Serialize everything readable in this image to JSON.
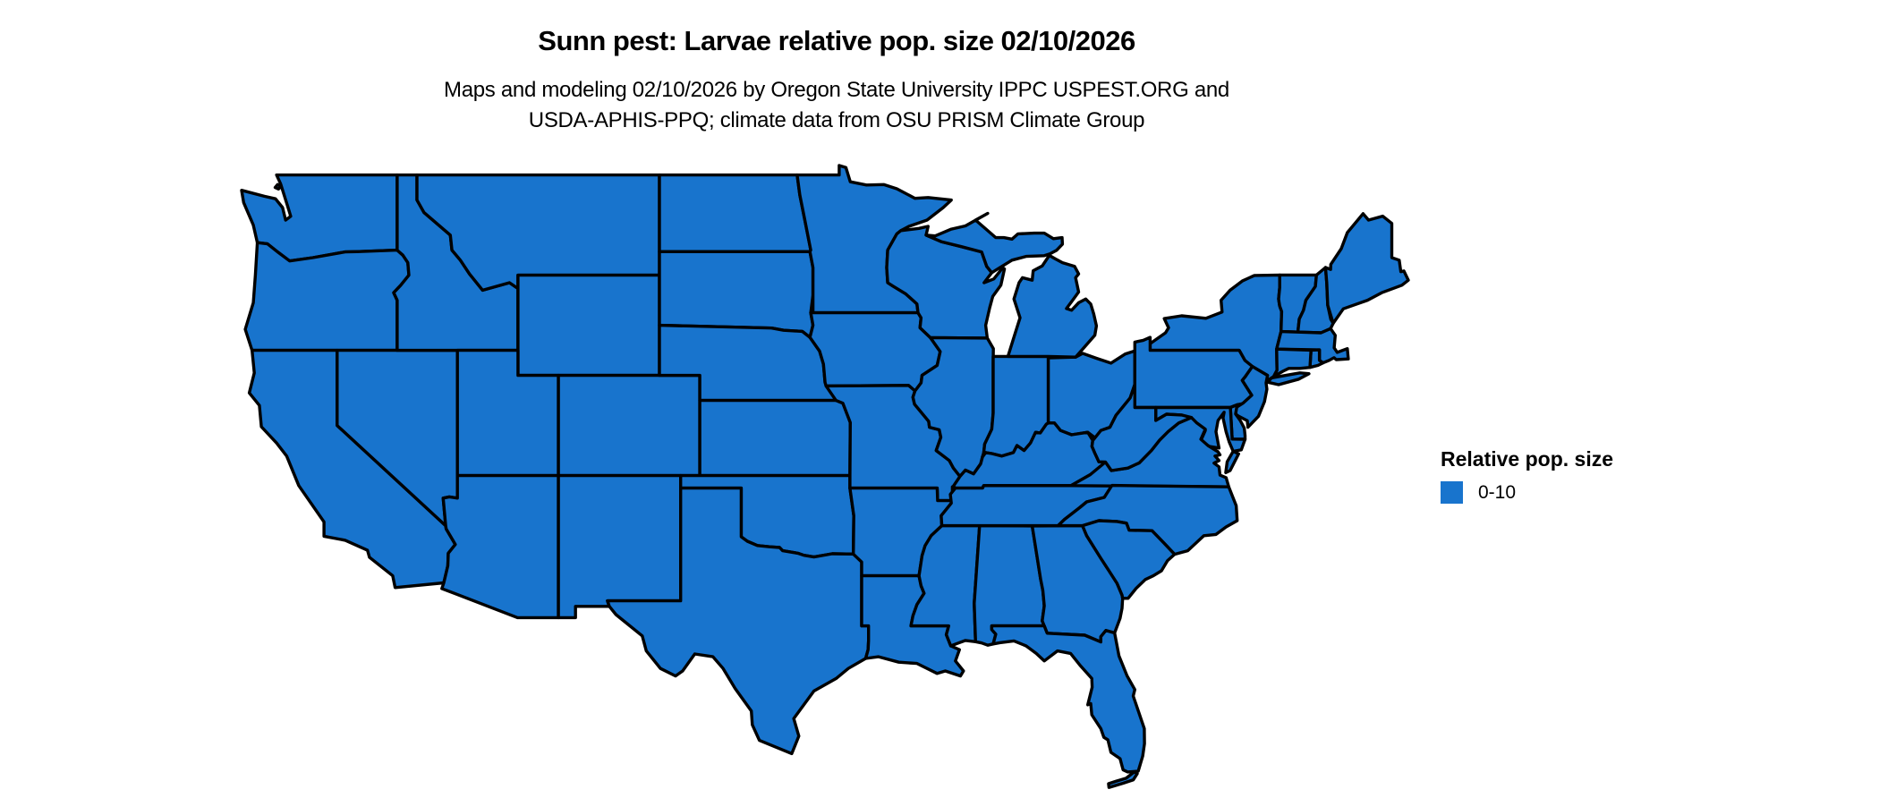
{
  "figure": {
    "title": "Sunn pest: Larvae relative pop. size 02/10/2026",
    "subtitle_line1": "Maps and modeling 02/10/2026 by Oregon State University IPPC USPEST.ORG and",
    "subtitle_line2": "USDA-APHIS-PPQ; climate data from OSU PRISM Climate Group"
  },
  "legend": {
    "title": "Relative pop. size",
    "items": [
      {
        "label": "0-10",
        "color": "#1874CD"
      }
    ]
  },
  "map": {
    "type": "choropleth",
    "region": "Contiguous United States",
    "fill_color": "#1874CD",
    "border_color": "#000000",
    "background_color": "#ffffff",
    "uniform_value_class": "0-10",
    "states_shown": [
      "WA",
      "OR",
      "CA",
      "NV",
      "ID",
      "MT",
      "WY",
      "UT",
      "CO",
      "AZ",
      "NM",
      "ND",
      "SD",
      "NE",
      "KS",
      "OK",
      "TX",
      "MN",
      "IA",
      "MO",
      "AR",
      "LA",
      "MS",
      "AL",
      "GA",
      "FL",
      "WI",
      "IL",
      "IN",
      "OH",
      "MI",
      "KY",
      "TN",
      "NY",
      "PA",
      "NJ",
      "DE",
      "MD",
      "VA",
      "WV",
      "NC",
      "SC",
      "VT",
      "NH",
      "ME",
      "MA",
      "RI",
      "CT"
    ]
  }
}
